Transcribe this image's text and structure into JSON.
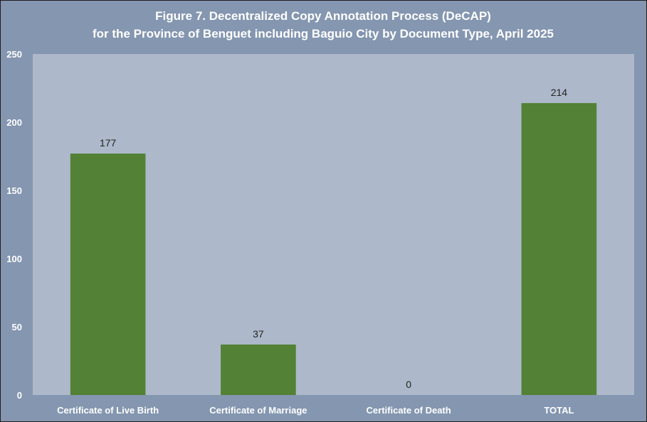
{
  "chart_data": {
    "type": "bar",
    "title": "Figure 7. Decentralized Copy Annotation Process (DeCAP)",
    "subtitle": "for the Province of Benguet including Baguio City by Document Type, April 2025",
    "categories": [
      "Certificate of Live Birth",
      "Certificate of Marriage",
      "Certificate of Death",
      "TOTAL"
    ],
    "values": [
      177,
      37,
      0,
      214
    ],
    "data_labels": [
      "177",
      "37",
      "0",
      "214"
    ],
    "ylim": [
      0,
      250
    ],
    "yticks": [
      0,
      50,
      100,
      150,
      200,
      250
    ],
    "ytick_labels": [
      "0",
      "50",
      "100",
      "150",
      "200",
      "250"
    ],
    "xlabel": "",
    "ylabel": "",
    "grid": false,
    "legend": "none",
    "colors": {
      "bar": "#538135",
      "plot_background": "#adb9ca",
      "outer_background": "#8496b0",
      "text": "#ffffff"
    }
  }
}
